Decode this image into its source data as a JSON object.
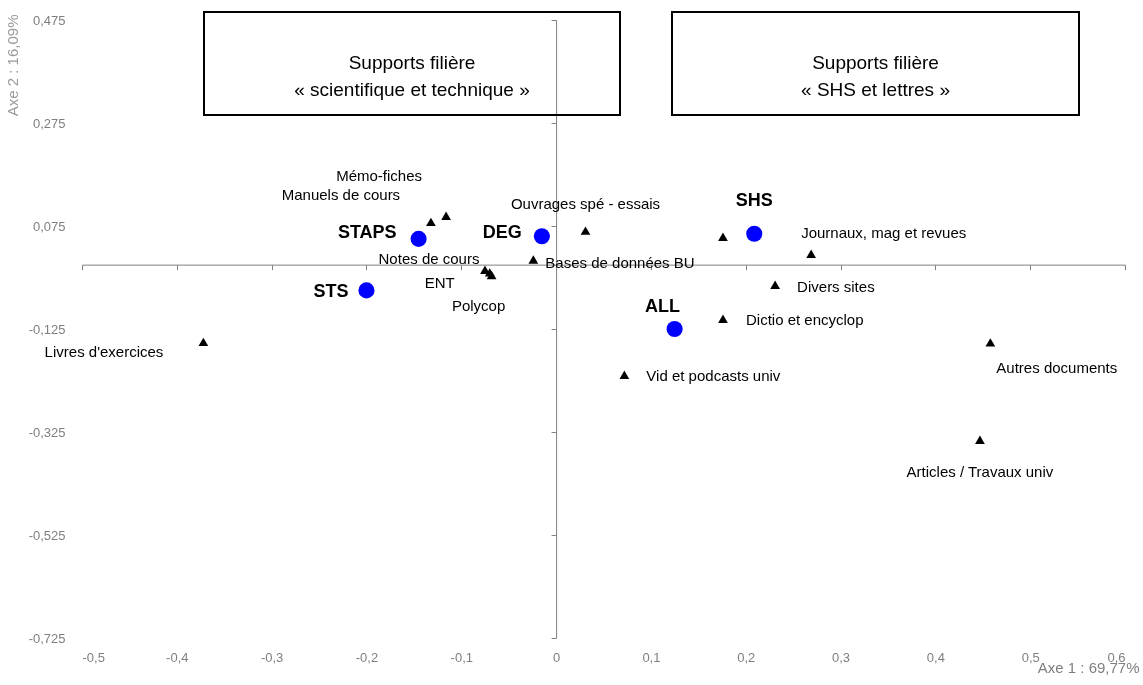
{
  "chart_data": {
    "type": "scatter",
    "xlabel": "Axe 1 : 69,77%",
    "ylabel": "Axe 2 : 16,09%",
    "xlim": [
      -0.5,
      0.6
    ],
    "ylim": [
      -0.725,
      0.475
    ],
    "xticks": [
      {
        "value": -0.5,
        "label": "-0,5"
      },
      {
        "value": -0.4,
        "label": "-0,4"
      },
      {
        "value": -0.3,
        "label": "-0,3"
      },
      {
        "value": -0.2,
        "label": "-0,2"
      },
      {
        "value": -0.1,
        "label": "-0,1"
      },
      0,
      {
        "value": 0.1,
        "label": "0,1"
      },
      {
        "value": 0.2,
        "label": "0,2"
      },
      {
        "value": 0.3,
        "label": "0,3"
      },
      {
        "value": 0.4,
        "label": "0,4"
      },
      {
        "value": 0.5,
        "label": "0,5"
      },
      {
        "value": 0.6,
        "label": "0,6"
      }
    ],
    "yticks": [
      {
        "value": 0.475,
        "label": "0,475"
      },
      {
        "value": 0.275,
        "label": "0,275"
      },
      {
        "value": 0.075,
        "label": "0,075"
      },
      {
        "value": -0.125,
        "label": "-0,125"
      },
      {
        "value": -0.325,
        "label": "-0,325"
      },
      {
        "value": -0.525,
        "label": "-0,525"
      },
      {
        "value": -0.725,
        "label": "-0,725"
      }
    ],
    "series": [
      {
        "color": "#0000ff",
        "marker": "circle",
        "x": [
          -0.145,
          -0.015,
          0.209,
          -0.2,
          0.125
        ],
        "values": [
          0.05,
          0.055,
          0.06,
          -0.05,
          -0.125
        ]
      },
      {
        "color": "#000000",
        "marker": "triangle",
        "x": [
          -0.116,
          -0.132,
          0.031,
          -0.024,
          -0.075,
          -0.07,
          -0.068,
          -0.372,
          0.269,
          0.231,
          0.176,
          0.072,
          0.458,
          0.447,
          0.176
        ],
        "values": [
          0.095,
          0.083,
          0.066,
          0.01,
          -0.01,
          -0.015,
          -0.02,
          -0.15,
          0.021,
          -0.039,
          -0.105,
          -0.214,
          -0.151,
          -0.34,
          0.054
        ]
      }
    ],
    "annotations": [
      {
        "text": "STAPS",
        "x": -0.145,
        "y": 0.05
      },
      {
        "text": "DEG",
        "x": -0.015,
        "y": 0.055
      },
      {
        "text": "SHS",
        "x": 0.209,
        "y": 0.06
      },
      {
        "text": "STS",
        "x": -0.2,
        "y": -0.05
      },
      {
        "text": "ALL",
        "x": 0.125,
        "y": -0.125
      },
      {
        "text": "Mémo-fiches",
        "x": -0.116,
        "y": 0.095
      },
      {
        "text": "Manuels de cours",
        "x": -0.132,
        "y": 0.083
      },
      {
        "text": "Ouvrages spé - essais",
        "x": 0.031,
        "y": 0.066
      },
      {
        "text": "Bases de données BU",
        "x": -0.024,
        "y": 0.01
      },
      {
        "text": "Notes de cours",
        "x": -0.075,
        "y": -0.01
      },
      {
        "text": "ENT",
        "x": -0.07,
        "y": -0.015
      },
      {
        "text": "Polycop",
        "x": -0.068,
        "y": -0.02
      },
      {
        "text": "Livres d'exercices",
        "x": -0.372,
        "y": -0.15
      },
      {
        "text": "Journaux, mag et revues",
        "x": 0.269,
        "y": 0.021
      },
      {
        "text": "Divers sites",
        "x": 0.231,
        "y": -0.039
      },
      {
        "text": "Dictio et encyclop",
        "x": 0.176,
        "y": -0.105
      },
      {
        "text": "Vid et podcasts univ",
        "x": 0.072,
        "y": -0.214
      },
      {
        "text": "Autres documents",
        "x": 0.458,
        "y": -0.151
      },
      {
        "text": "Articles / Travaux univ",
        "x": 0.447,
        "y": -0.34
      },
      "Supports filière\n« scientifique et technique »",
      "Supports filière\n« SHS et lettres »"
    ]
  }
}
